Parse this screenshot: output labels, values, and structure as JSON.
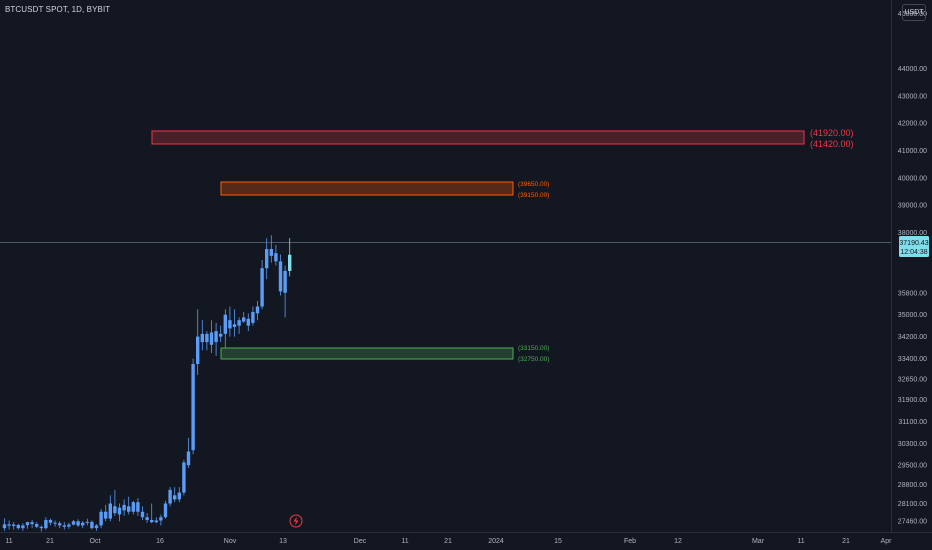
{
  "header": {
    "symbol_title": "BTCUSDT SPOT, 1D, BYBIT",
    "currency_button": "USDT"
  },
  "price_scale": {
    "ticks": [
      "46000.00",
      "44000.00",
      "43000.00",
      "42000.00",
      "41000.00",
      "40000.00",
      "39000.00",
      "38000.00",
      "35800.00",
      "35000.00",
      "34200.00",
      "33400.00",
      "32650.00",
      "31900.00",
      "31100.00",
      "30300.00",
      "29500.00",
      "28800.00",
      "28100.00",
      "27460.00"
    ],
    "last_price_label": "37190.43",
    "countdown_label": "12:04:38"
  },
  "time_scale": {
    "labels": [
      "11",
      "21",
      "Oct",
      "16",
      "Nov",
      "13",
      "Dec",
      "11",
      "21",
      "2024",
      "15",
      "Feb",
      "12",
      "Mar",
      "11",
      "21",
      "Apr"
    ]
  },
  "zones": [
    {
      "name": "resistance-zone-upper",
      "top_label": "(41920.00)",
      "bottom_label": "(41420.00)",
      "color": "#f23645"
    },
    {
      "name": "resistance-zone-lower",
      "top_label": "(39650.00)",
      "bottom_label": "(39150.00)",
      "color": "#ff5d00"
    },
    {
      "name": "support-zone",
      "top_label": "(33150.00)",
      "bottom_label": "(32750.00)",
      "color": "#4caf50"
    }
  ],
  "colors": {
    "background": "#131722",
    "candle_up": "#5b9cf6",
    "candle_last": "#80deea",
    "price_line": "#5d6d7e"
  },
  "chart_data": {
    "type": "candlestick",
    "title": "BTCUSDT SPOT, 1D, BYBIT",
    "xlabel": "",
    "ylabel": "",
    "ylim": [
      27060,
      46500
    ],
    "grid": false,
    "candles": [
      {
        "o": 27200,
        "h": 27560,
        "l": 27100,
        "c": 27340
      },
      {
        "o": 27340,
        "h": 27480,
        "l": 27150,
        "c": 27290
      },
      {
        "o": 27280,
        "h": 27420,
        "l": 27150,
        "c": 27330
      },
      {
        "o": 27320,
        "h": 27350,
        "l": 27150,
        "c": 27200
      },
      {
        "o": 27200,
        "h": 27380,
        "l": 27100,
        "c": 27300
      },
      {
        "o": 27310,
        "h": 27440,
        "l": 27180,
        "c": 27420
      },
      {
        "o": 27420,
        "h": 27500,
        "l": 27200,
        "c": 27350
      },
      {
        "o": 27350,
        "h": 27420,
        "l": 27200,
        "c": 27250
      },
      {
        "o": 27250,
        "h": 27300,
        "l": 27080,
        "c": 27200
      },
      {
        "o": 27200,
        "h": 27600,
        "l": 27150,
        "c": 27500
      },
      {
        "o": 27500,
        "h": 27550,
        "l": 27300,
        "c": 27400
      },
      {
        "o": 27400,
        "h": 27480,
        "l": 27250,
        "c": 27380
      },
      {
        "o": 27380,
        "h": 27450,
        "l": 27200,
        "c": 27300
      },
      {
        "o": 27300,
        "h": 27420,
        "l": 27150,
        "c": 27250
      },
      {
        "o": 27260,
        "h": 27400,
        "l": 27180,
        "c": 27330
      },
      {
        "o": 27330,
        "h": 27500,
        "l": 27300,
        "c": 27450
      },
      {
        "o": 27450,
        "h": 27520,
        "l": 27250,
        "c": 27300
      },
      {
        "o": 27300,
        "h": 27460,
        "l": 27200,
        "c": 27400
      },
      {
        "o": 27400,
        "h": 27550,
        "l": 27300,
        "c": 27430
      },
      {
        "o": 27430,
        "h": 27480,
        "l": 27150,
        "c": 27200
      },
      {
        "o": 27200,
        "h": 27350,
        "l": 27100,
        "c": 27300
      },
      {
        "o": 27300,
        "h": 27900,
        "l": 27200,
        "c": 27800
      },
      {
        "o": 27800,
        "h": 28050,
        "l": 27450,
        "c": 27550
      },
      {
        "o": 27550,
        "h": 28400,
        "l": 27450,
        "c": 28100
      },
      {
        "o": 28000,
        "h": 28600,
        "l": 27650,
        "c": 27750
      },
      {
        "o": 27700,
        "h": 28100,
        "l": 27450,
        "c": 27950
      },
      {
        "o": 27850,
        "h": 28250,
        "l": 27650,
        "c": 28050
      },
      {
        "o": 28000,
        "h": 28350,
        "l": 27700,
        "c": 27800
      },
      {
        "o": 27800,
        "h": 28200,
        "l": 27700,
        "c": 28150
      },
      {
        "o": 28150,
        "h": 28300,
        "l": 27650,
        "c": 27800
      },
      {
        "o": 27800,
        "h": 28000,
        "l": 27500,
        "c": 27600
      },
      {
        "o": 27600,
        "h": 27750,
        "l": 27400,
        "c": 27500
      },
      {
        "o": 27500,
        "h": 28100,
        "l": 27380,
        "c": 27420
      },
      {
        "o": 27420,
        "h": 27600,
        "l": 27380,
        "c": 27480
      },
      {
        "o": 27480,
        "h": 27700,
        "l": 27300,
        "c": 27600
      },
      {
        "o": 27600,
        "h": 28200,
        "l": 27550,
        "c": 28100
      },
      {
        "o": 28100,
        "h": 28700,
        "l": 28000,
        "c": 28600
      },
      {
        "o": 28400,
        "h": 28700,
        "l": 28150,
        "c": 28250
      },
      {
        "o": 28250,
        "h": 28700,
        "l": 28150,
        "c": 28500
      },
      {
        "o": 28500,
        "h": 29700,
        "l": 28400,
        "c": 29600
      },
      {
        "o": 29500,
        "h": 30500,
        "l": 29400,
        "c": 30000
      },
      {
        "o": 30050,
        "h": 33400,
        "l": 29900,
        "c": 33200
      },
      {
        "o": 33200,
        "h": 35200,
        "l": 32800,
        "c": 34200
      },
      {
        "o": 34300,
        "h": 34800,
        "l": 33700,
        "c": 34000
      },
      {
        "o": 34000,
        "h": 34400,
        "l": 33700,
        "c": 34300
      },
      {
        "o": 34350,
        "h": 34800,
        "l": 33600,
        "c": 33900
      },
      {
        "o": 34000,
        "h": 34700,
        "l": 33500,
        "c": 34400
      },
      {
        "o": 34300,
        "h": 34600,
        "l": 34000,
        "c": 34200
      },
      {
        "o": 34300,
        "h": 35200,
        "l": 33800,
        "c": 35000
      },
      {
        "o": 34800,
        "h": 35300,
        "l": 34200,
        "c": 34500
      },
      {
        "o": 34550,
        "h": 35200,
        "l": 34200,
        "c": 34650
      },
      {
        "o": 34600,
        "h": 34900,
        "l": 34300,
        "c": 34800
      },
      {
        "o": 34750,
        "h": 35100,
        "l": 34700,
        "c": 34900
      },
      {
        "o": 34850,
        "h": 35050,
        "l": 34400,
        "c": 34600
      },
      {
        "o": 34700,
        "h": 35300,
        "l": 34600,
        "c": 35100
      },
      {
        "o": 35050,
        "h": 35500,
        "l": 34800,
        "c": 35300
      },
      {
        "o": 35300,
        "h": 37000,
        "l": 35200,
        "c": 36700
      },
      {
        "o": 36700,
        "h": 37800,
        "l": 36300,
        "c": 37400
      },
      {
        "o": 37400,
        "h": 37900,
        "l": 36900,
        "c": 37150
      },
      {
        "o": 37250,
        "h": 37550,
        "l": 36800,
        "c": 36950
      },
      {
        "o": 36950,
        "h": 37200,
        "l": 35700,
        "c": 35850
      },
      {
        "o": 35800,
        "h": 36800,
        "l": 34900,
        "c": 36600
      },
      {
        "o": 36600,
        "h": 37800,
        "l": 36400,
        "c": 37190
      }
    ],
    "zones": [
      {
        "top": 41920,
        "bottom": 41420
      },
      {
        "top": 39650,
        "bottom": 39150
      },
      {
        "top": 33150,
        "bottom": 32750
      }
    ],
    "last_price": 37190.43
  }
}
